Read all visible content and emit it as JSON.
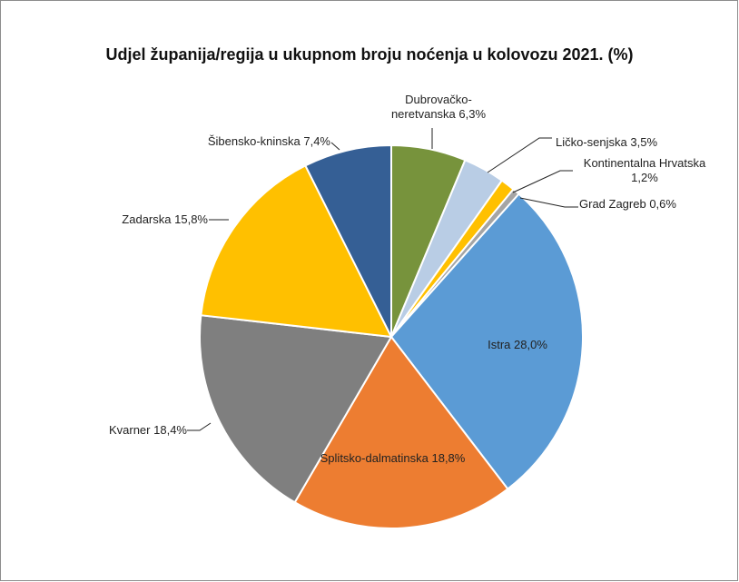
{
  "chart_data": {
    "type": "pie",
    "title": "Udjel županija/regija u ukupnom broju noćenja u kolovozu 2021. (%)",
    "categories": [
      "Dubrovačko-neretvanska",
      "Ličko-senjska",
      "Kontinentalna Hrvatska",
      "Grad Zagreb",
      "Istra",
      "Splitsko-dalmatinska",
      "Kvarner",
      "Zadarska",
      "Šibensko-kninska"
    ],
    "values": [
      6.3,
      3.5,
      1.2,
      0.6,
      28.0,
      18.8,
      18.4,
      15.8,
      7.4
    ],
    "value_labels": [
      "6,3%",
      "3,5%",
      "1,2%",
      "0,6%",
      "28,0%",
      "18,8%",
      "18,4%",
      "15,8%",
      "7,4%"
    ],
    "colors": [
      "#77933c",
      "#b9cde5",
      "#ffc000",
      "#a5a5a5",
      "#5b9bd5",
      "#ed7d31",
      "#7f7f7f",
      "#ffc000",
      "#355f95"
    ]
  }
}
